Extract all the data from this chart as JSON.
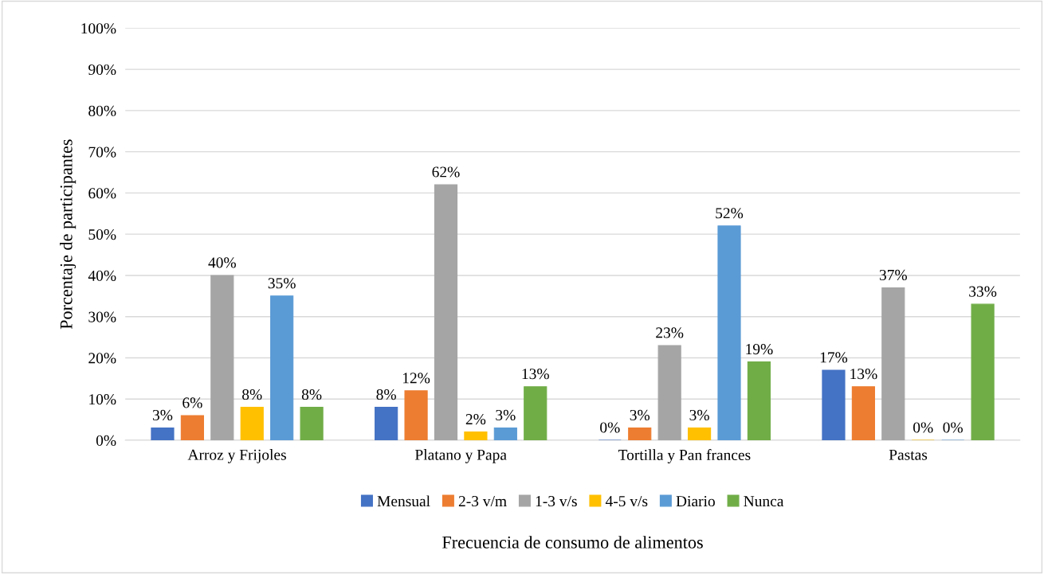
{
  "chart_data": {
    "type": "bar",
    "xlabel": "Frecuencia de consumo de alimentos",
    "ylabel": "Porcentaje de participantes",
    "categories": [
      "Arroz y Frijoles",
      "Platano y Papa",
      "Tortilla y Pan frances",
      "Pastas"
    ],
    "series": [
      {
        "name": "Mensual",
        "color": "#4472c4",
        "values": [
          3,
          8,
          0,
          17
        ],
        "value_labels": [
          "3%",
          "8%",
          "0%",
          "17%"
        ]
      },
      {
        "name": "2-3 v/m",
        "color": "#ed7d31",
        "values": [
          6,
          12,
          3,
          13
        ],
        "value_labels": [
          "6%",
          "12%",
          "3%",
          "13%"
        ]
      },
      {
        "name": "1-3 v/s",
        "color": "#a5a5a5",
        "values": [
          40,
          62,
          23,
          37
        ],
        "value_labels": [
          "40%",
          "62%",
          "23%",
          "37%"
        ]
      },
      {
        "name": "4-5 v/s",
        "color": "#ffc000",
        "values": [
          8,
          2,
          3,
          0
        ],
        "value_labels": [
          "8%",
          "2%",
          "3%",
          "0%"
        ]
      },
      {
        "name": "Diario",
        "color": "#5b9bd5",
        "values": [
          35,
          3,
          52,
          0
        ],
        "value_labels": [
          "35%",
          "3%",
          "52%",
          "0%"
        ]
      },
      {
        "name": "Nunca",
        "color": "#70ad47",
        "values": [
          8,
          13,
          19,
          33
        ],
        "value_labels": [
          "8%",
          "13%",
          "19%",
          "33%"
        ]
      }
    ],
    "ylim": [
      0,
      100
    ],
    "yticks": [
      {
        "value": 0,
        "label": "0%"
      },
      {
        "value": 10,
        "label": "10%"
      },
      {
        "value": 20,
        "label": "20%"
      },
      {
        "value": 30,
        "label": "30%"
      },
      {
        "value": 40,
        "label": "40%"
      },
      {
        "value": 50,
        "label": "50%"
      },
      {
        "value": 60,
        "label": "60%"
      },
      {
        "value": 70,
        "label": "70%"
      },
      {
        "value": 80,
        "label": "80%"
      },
      {
        "value": 90,
        "label": "90%"
      },
      {
        "value": 100,
        "label": "100%"
      }
    ],
    "grid": "y",
    "legend": "bottom"
  }
}
